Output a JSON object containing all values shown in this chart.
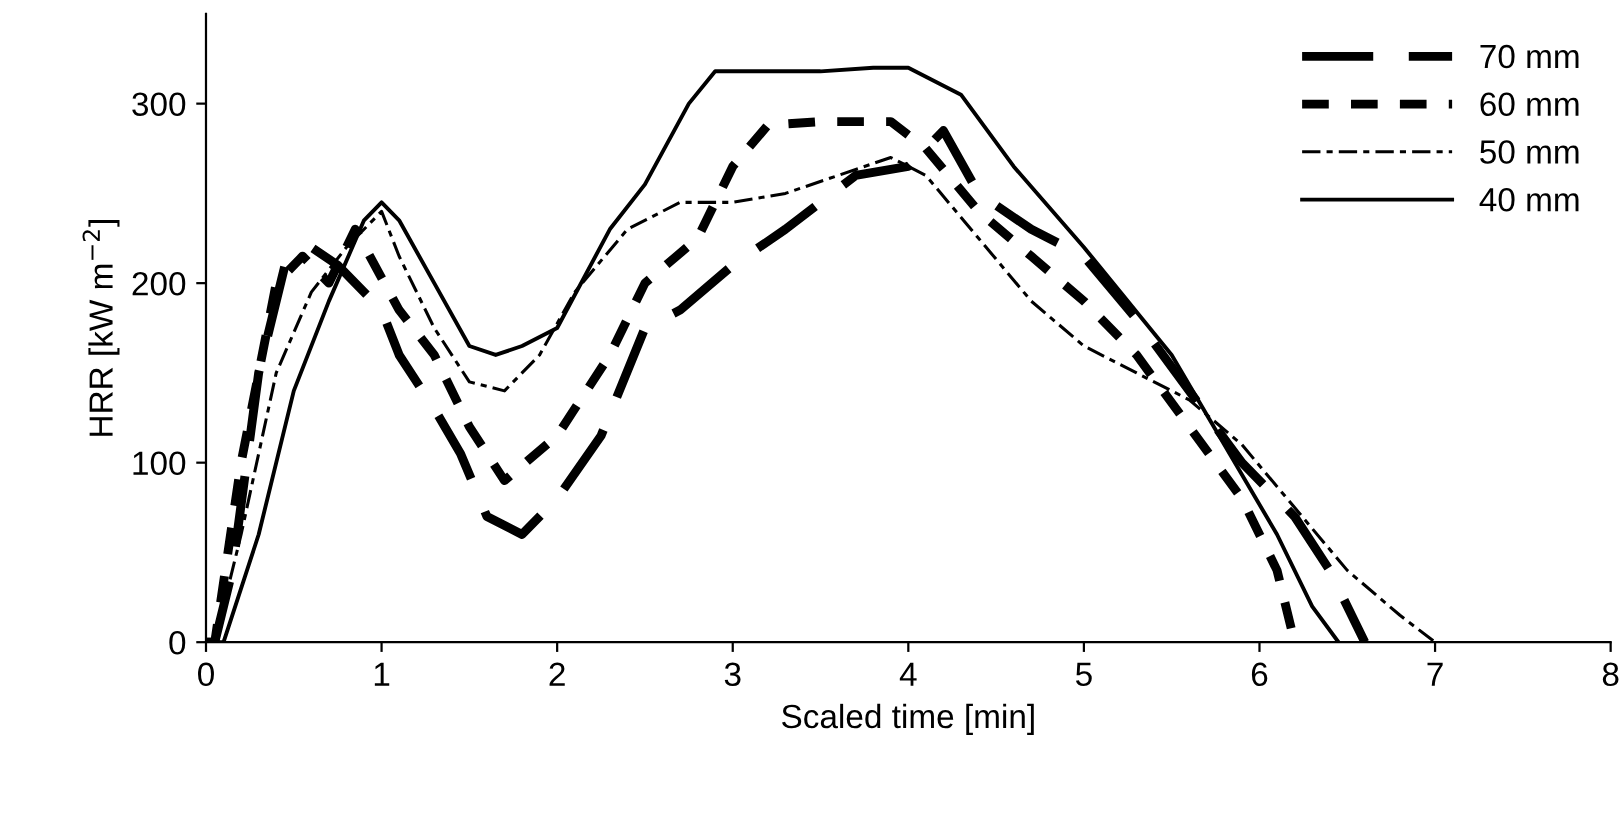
{
  "chart_data": {
    "type": "line",
    "xlabel": "Scaled time [min]",
    "ylabel": "HRR [kW m$^{−2}$]",
    "xlim": [
      0,
      8
    ],
    "ylim": [
      0,
      350
    ],
    "xticks": [
      0,
      1,
      2,
      3,
      4,
      5,
      6,
      7,
      8
    ],
    "yticks": [
      0,
      100,
      200,
      300
    ],
    "legend": "top right",
    "grid": false,
    "marker": "none",
    "series": [
      {
        "name": "70 mm",
        "color": "#000000",
        "line_style": "longdash",
        "x": [
          0,
          0.05,
          0.15,
          0.3,
          0.45,
          0.6,
          0.75,
          1.0,
          1.1,
          1.3,
          1.45,
          1.6,
          1.8,
          2.0,
          2.25,
          2.5,
          2.7,
          3.0,
          3.3,
          3.7,
          4.0,
          4.2,
          4.4,
          4.7,
          5.0,
          5.3,
          5.6,
          5.9,
          6.2,
          6.4,
          6.6
        ],
        "values": [
          0,
          0,
          40,
          150,
          210,
          220,
          210,
          185,
          160,
          130,
          105,
          70,
          60,
          80,
          115,
          175,
          185,
          210,
          230,
          260,
          265,
          285,
          250,
          230,
          215,
          180,
          140,
          100,
          70,
          40,
          0
        ]
      },
      {
        "name": "60 mm",
        "color": "#000000",
        "line_style": "dashed",
        "x": [
          0,
          0.05,
          0.2,
          0.4,
          0.55,
          0.7,
          0.85,
          1.1,
          1.3,
          1.5,
          1.7,
          2.0,
          2.3,
          2.5,
          2.8,
          3.0,
          3.2,
          3.5,
          3.9,
          4.1,
          4.4,
          4.7,
          5.0,
          5.3,
          5.6,
          5.9,
          6.1,
          6.2
        ],
        "values": [
          0,
          0,
          100,
          200,
          215,
          200,
          230,
          185,
          160,
          120,
          90,
          115,
          160,
          200,
          225,
          265,
          288,
          290,
          290,
          275,
          240,
          215,
          190,
          160,
          120,
          80,
          40,
          0
        ]
      },
      {
        "name": "50 mm",
        "color": "#000000",
        "line_style": "dashdot",
        "x": [
          0,
          0.05,
          0.2,
          0.4,
          0.6,
          0.8,
          1.0,
          1.1,
          1.3,
          1.5,
          1.7,
          1.9,
          2.1,
          2.4,
          2.7,
          3.0,
          3.3,
          3.6,
          3.9,
          4.1,
          4.4,
          4.7,
          5.0,
          5.3,
          5.6,
          5.9,
          6.2,
          6.5,
          6.8,
          7.0
        ],
        "values": [
          0,
          0,
          60,
          150,
          195,
          220,
          240,
          215,
          175,
          145,
          140,
          160,
          195,
          230,
          245,
          245,
          250,
          260,
          270,
          260,
          225,
          190,
          165,
          150,
          135,
          110,
          75,
          40,
          15,
          0
        ]
      },
      {
        "name": "40 mm",
        "color": "#000000",
        "line_style": "solid",
        "x": [
          0,
          0.1,
          0.3,
          0.5,
          0.7,
          0.9,
          1.0,
          1.1,
          1.3,
          1.5,
          1.65,
          1.8,
          2.0,
          2.3,
          2.5,
          2.75,
          2.9,
          3.2,
          3.5,
          3.8,
          4.0,
          4.3,
          4.6,
          5.0,
          5.5,
          5.8,
          6.1,
          6.3,
          6.45
        ],
        "values": [
          0,
          0,
          60,
          140,
          190,
          235,
          245,
          235,
          200,
          165,
          160,
          165,
          175,
          230,
          255,
          300,
          318,
          318,
          318,
          320,
          320,
          305,
          265,
          220,
          160,
          110,
          60,
          20,
          0
        ]
      }
    ]
  }
}
